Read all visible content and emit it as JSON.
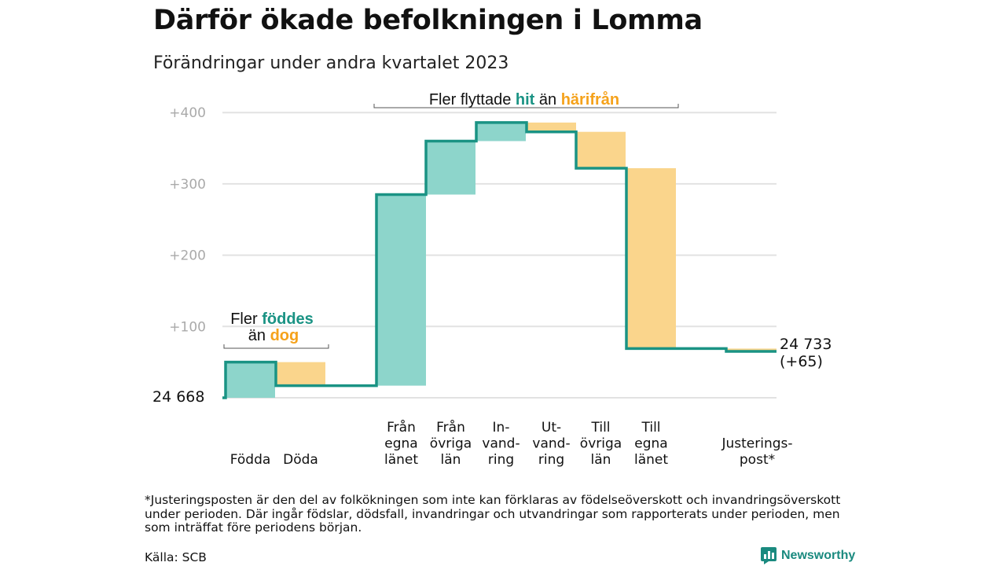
{
  "title": "Därför ökade befolkningen i Lomma",
  "subtitle": "Förändringar under andra kvartalet 2023",
  "footnote": "*Justeringsposten är den del av folkökningen som inte kan förklaras av födelseöverskott och invandringsöverskott under perioden. Där ingår födslar, dödsfall, invandringar och utvandringar som rapporterats under perioden, men som inträffat före periodens början.",
  "source": "Källa: SCB",
  "logo_text": "Newsworthy",
  "colors": {
    "line": "#1a9384",
    "increase": "#8dd5cb",
    "decrease": "#fad58c",
    "accent_green": "#1a9384",
    "accent_orange": "#f5a21b",
    "grid": "#e2e2e2",
    "tick": "#aaaaaa"
  },
  "chart_data": {
    "type": "waterfall",
    "start_label": "24  668",
    "end_label_1": "24 733",
    "end_label_2": "(+65)",
    "start_value": 0,
    "end_value": 65,
    "ylim": [
      0,
      400
    ],
    "yticks": [
      {
        "value": 100,
        "label": "+100"
      },
      {
        "value": 200,
        "label": "+200"
      },
      {
        "value": 300,
        "label": "+300"
      },
      {
        "value": 400,
        "label": "+400"
      }
    ],
    "categories": [
      {
        "label_lines": [
          "Födda"
        ],
        "from": 0,
        "to": 50
      },
      {
        "label_lines": [
          "Döda"
        ],
        "from": 50,
        "to": 17
      },
      {
        "label_lines": [
          "Från",
          "egna",
          "länet"
        ],
        "from": 17,
        "to": 285
      },
      {
        "label_lines": [
          "Från",
          "övriga",
          "län"
        ],
        "from": 285,
        "to": 360
      },
      {
        "label_lines": [
          "In-",
          "vand-",
          "ring"
        ],
        "from": 360,
        "to": 386
      },
      {
        "label_lines": [
          "Ut-",
          "vand-",
          "ring"
        ],
        "from": 386,
        "to": 373
      },
      {
        "label_lines": [
          "Till",
          "övriga",
          "län"
        ],
        "from": 373,
        "to": 322
      },
      {
        "label_lines": [
          "Till",
          "egna",
          "länet"
        ],
        "from": 322,
        "to": 69
      },
      {
        "label_lines": [
          "Justerings-",
          "post*"
        ],
        "from": 69,
        "to": 65
      }
    ],
    "annotations": {
      "births": {
        "line1": "Fler",
        "line1_hl": "föddes",
        "line2": "än",
        "line2_hl": "dog"
      },
      "migration": {
        "prefix": "Fler flyttade",
        "hl1": "hit",
        "middle": "än",
        "hl2": "härifrån"
      }
    }
  }
}
